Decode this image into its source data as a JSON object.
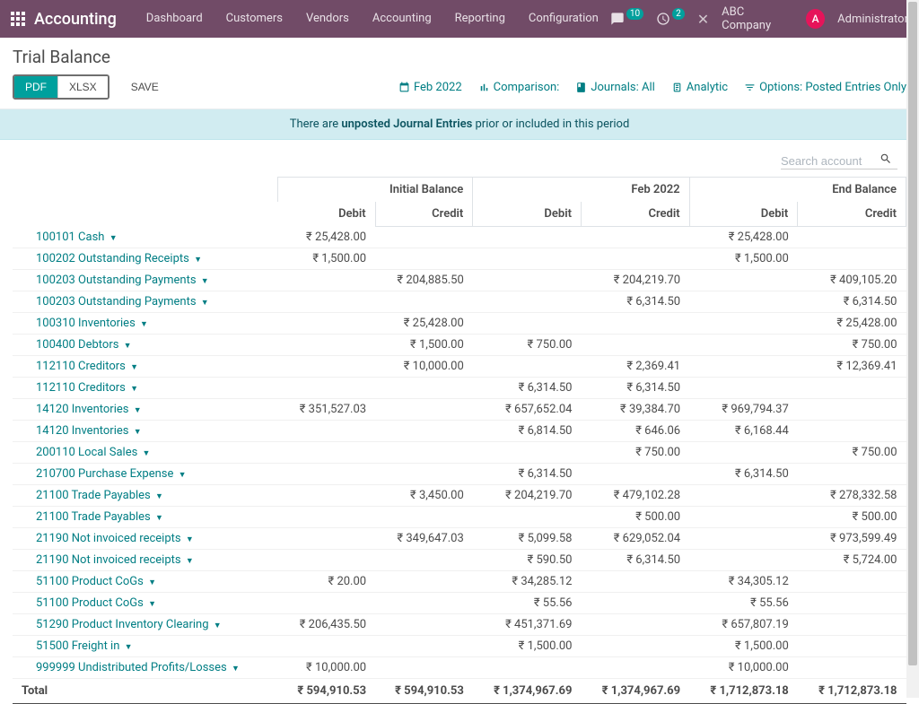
{
  "topbar": {
    "brand": "Accounting",
    "nav": [
      "Dashboard",
      "Customers",
      "Vendors",
      "Accounting",
      "Reporting",
      "Configuration"
    ],
    "msg_badge": "10",
    "activity_badge": "2",
    "company": "ABC Company",
    "avatar_letter": "A",
    "user": "Administrator"
  },
  "page": {
    "title": "Trial Balance"
  },
  "toolbar": {
    "pdf": "PDF",
    "xlsx": "XLSX",
    "save": "SAVE",
    "filters": {
      "period": "Feb 2022",
      "comparison": "Comparison:",
      "journals": "Journals: All",
      "analytic": "Analytic",
      "options": "Options: Posted Entries Only"
    }
  },
  "alert": {
    "pre": "There are ",
    "bold": "unposted Journal Entries",
    "post": " prior or included in this period"
  },
  "search": {
    "placeholder": "Search account"
  },
  "table": {
    "headers": {
      "initial": "Initial Balance",
      "period": "Feb 2022",
      "end": "End Balance",
      "debit": "Debit",
      "credit": "Credit"
    },
    "rows": [
      {
        "name": "100101 Cash",
        "id": "₹ 25,428.00",
        "ic": "",
        "pd": "",
        "pc": "",
        "ed": "₹ 25,428.00",
        "ec": ""
      },
      {
        "name": "100202 Outstanding Receipts",
        "id": "₹ 1,500.00",
        "ic": "",
        "pd": "",
        "pc": "",
        "ed": "₹ 1,500.00",
        "ec": ""
      },
      {
        "name": "100203 Outstanding Payments",
        "id": "",
        "ic": "₹ 204,885.50",
        "pd": "",
        "pc": "₹ 204,219.70",
        "ed": "",
        "ec": "₹ 409,105.20"
      },
      {
        "name": "100203 Outstanding Payments",
        "id": "",
        "ic": "",
        "pd": "",
        "pc": "₹ 6,314.50",
        "ed": "",
        "ec": "₹ 6,314.50"
      },
      {
        "name": "100310 Inventories",
        "id": "",
        "ic": "₹ 25,428.00",
        "pd": "",
        "pc": "",
        "ed": "",
        "ec": "₹ 25,428.00"
      },
      {
        "name": "100400 Debtors",
        "id": "",
        "ic": "₹ 1,500.00",
        "pd": "₹ 750.00",
        "pc": "",
        "ed": "",
        "ec": "₹ 750.00"
      },
      {
        "name": "112110 Creditors",
        "id": "",
        "ic": "₹ 10,000.00",
        "pd": "",
        "pc": "₹ 2,369.41",
        "ed": "",
        "ec": "₹ 12,369.41"
      },
      {
        "name": "112110 Creditors",
        "id": "",
        "ic": "",
        "pd": "₹ 6,314.50",
        "pc": "₹ 6,314.50",
        "ed": "",
        "ec": ""
      },
      {
        "name": "14120 Inventories",
        "id": "₹ 351,527.03",
        "ic": "",
        "pd": "₹ 657,652.04",
        "pc": "₹ 39,384.70",
        "ed": "₹ 969,794.37",
        "ec": ""
      },
      {
        "name": "14120 Inventories",
        "id": "",
        "ic": "",
        "pd": "₹ 6,814.50",
        "pc": "₹ 646.06",
        "ed": "₹ 6,168.44",
        "ec": ""
      },
      {
        "name": "200110 Local Sales",
        "id": "",
        "ic": "",
        "pd": "",
        "pc": "₹ 750.00",
        "ed": "",
        "ec": "₹ 750.00"
      },
      {
        "name": "210700 Purchase Expense",
        "id": "",
        "ic": "",
        "pd": "₹ 6,314.50",
        "pc": "",
        "ed": "₹ 6,314.50",
        "ec": ""
      },
      {
        "name": "21100 Trade Payables",
        "id": "",
        "ic": "₹ 3,450.00",
        "pd": "₹ 204,219.70",
        "pc": "₹ 479,102.28",
        "ed": "",
        "ec": "₹ 278,332.58"
      },
      {
        "name": "21100 Trade Payables",
        "id": "",
        "ic": "",
        "pd": "",
        "pc": "₹ 500.00",
        "ed": "",
        "ec": "₹ 500.00"
      },
      {
        "name": "21190 Not invoiced receipts",
        "id": "",
        "ic": "₹ 349,647.03",
        "pd": "₹ 5,099.58",
        "pc": "₹ 629,052.04",
        "ed": "",
        "ec": "₹ 973,599.49"
      },
      {
        "name": "21190 Not invoiced receipts",
        "id": "",
        "ic": "",
        "pd": "₹ 590.50",
        "pc": "₹ 6,314.50",
        "ed": "",
        "ec": "₹ 5,724.00"
      },
      {
        "name": "51100 Product CoGs",
        "id": "₹ 20.00",
        "ic": "",
        "pd": "₹ 34,285.12",
        "pc": "",
        "ed": "₹ 34,305.12",
        "ec": ""
      },
      {
        "name": "51100 Product CoGs",
        "id": "",
        "ic": "",
        "pd": "₹ 55.56",
        "pc": "",
        "ed": "₹ 55.56",
        "ec": ""
      },
      {
        "name": "51290 Product Inventory Clearing",
        "id": "₹ 206,435.50",
        "ic": "",
        "pd": "₹ 451,371.69",
        "pc": "",
        "ed": "₹ 657,807.19",
        "ec": ""
      },
      {
        "name": "51500 Freight in",
        "id": "",
        "ic": "",
        "pd": "₹ 1,500.00",
        "pc": "",
        "ed": "₹ 1,500.00",
        "ec": ""
      },
      {
        "name": "999999 Undistributed Profits/Losses",
        "id": "₹ 10,000.00",
        "ic": "",
        "pd": "",
        "pc": "",
        "ed": "₹ 10,000.00",
        "ec": ""
      }
    ],
    "total": {
      "label": "Total",
      "id": "₹ 594,910.53",
      "ic": "₹ 594,910.53",
      "pd": "₹ 1,374,967.69",
      "pc": "₹ 1,374,967.69",
      "ed": "₹ 1,712,873.18",
      "ec": "₹ 1,712,873.18"
    }
  },
  "colors": {
    "brand_bg": "#714B67",
    "accent": "#00A09D",
    "link": "#017e84",
    "avatar_bg": "#E6145A",
    "alert_bg": "#d1ecf1",
    "alert_text": "#0c5460"
  }
}
